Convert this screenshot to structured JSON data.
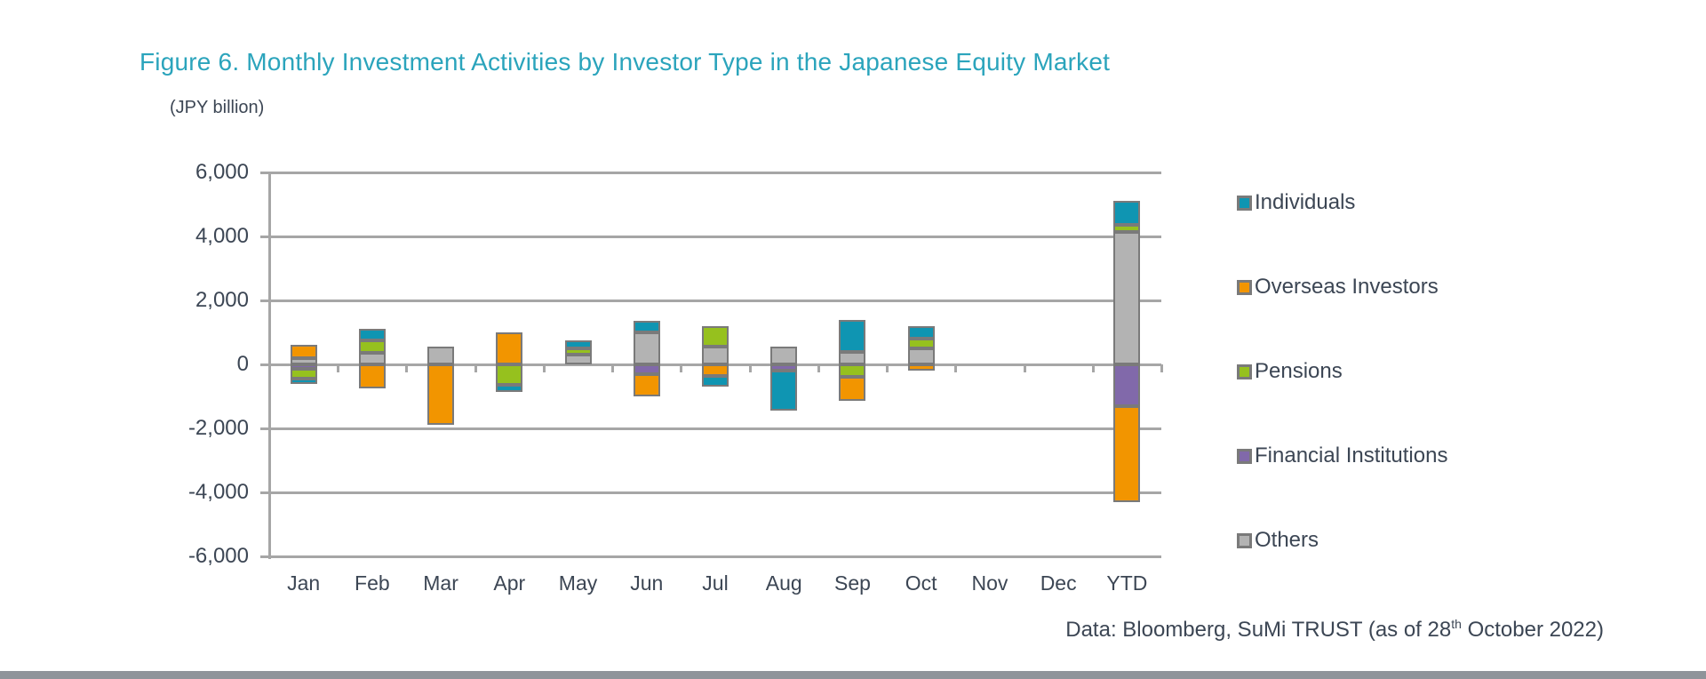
{
  "page": {
    "figure_title": "Figure 6. Monthly Investment Activities by Investor Type in the Japanese Equity Market",
    "unit_label": "(JPY billion)",
    "footer": {
      "prefix": "Data: Bloomberg, SuMi TRUST (as of 28",
      "superscript": "th",
      "suffix": " October 2022)"
    }
  },
  "colors": {
    "title_accent": "#2BA4BC",
    "axis_and_grid": "#A6A6A6",
    "segment_border": "#7A7A7A",
    "text": "#3C4654",
    "bottom_strip": "#8F949A"
  },
  "chart_data": {
    "type": "bar",
    "stacked": true,
    "title": "Figure 6. Monthly Investment Activities by Investor Type in the Japanese Equity Market",
    "xlabel": "",
    "ylabel": "(JPY billion)",
    "ylim": [
      -6000,
      6000
    ],
    "ytick_step": 2000,
    "ytick_values": [
      6000,
      4000,
      2000,
      0,
      -2000,
      -4000,
      -6000
    ],
    "ytick_labels": [
      "6,000",
      "4,000",
      "2,000",
      "0",
      "-2,000",
      "-4,000",
      "-6,000"
    ],
    "grid": "horizontal",
    "legend_position": "right",
    "categories": [
      "Jan",
      "Feb",
      "Mar",
      "Apr",
      "May",
      "Jun",
      "Jul",
      "Aug",
      "Sep",
      "Oct",
      "Nov",
      "Dec",
      "YTD"
    ],
    "stack_order_from_zero": [
      "Others",
      "Financial Institutions",
      "Pensions",
      "Overseas Investors",
      "Individuals"
    ],
    "series": [
      {
        "name": "Individuals",
        "color": "#0F95B2",
        "values": [
          -150,
          350,
          0,
          -200,
          250,
          350,
          -350,
          -1250,
          1000,
          400,
          null,
          null,
          750
        ]
      },
      {
        "name": "Overseas Investors",
        "color": "#F29500",
        "values": [
          400,
          -750,
          -1900,
          1000,
          0,
          -700,
          -350,
          0,
          -750,
          -200,
          null,
          null,
          -3000
        ]
      },
      {
        "name": "Pensions",
        "color": "#96C11E",
        "values": [
          -300,
          400,
          0,
          -650,
          200,
          0,
          650,
          0,
          -400,
          300,
          null,
          null,
          200
        ]
      },
      {
        "name": "Financial Institutions",
        "color": "#8169AA",
        "values": [
          -150,
          0,
          0,
          0,
          0,
          -300,
          0,
          -200,
          0,
          0,
          null,
          null,
          -1300
        ]
      },
      {
        "name": "Others",
        "color": "#B3B3B3",
        "values": [
          200,
          350,
          550,
          0,
          300,
          1000,
          550,
          550,
          400,
          500,
          null,
          null,
          4150
        ]
      }
    ]
  }
}
